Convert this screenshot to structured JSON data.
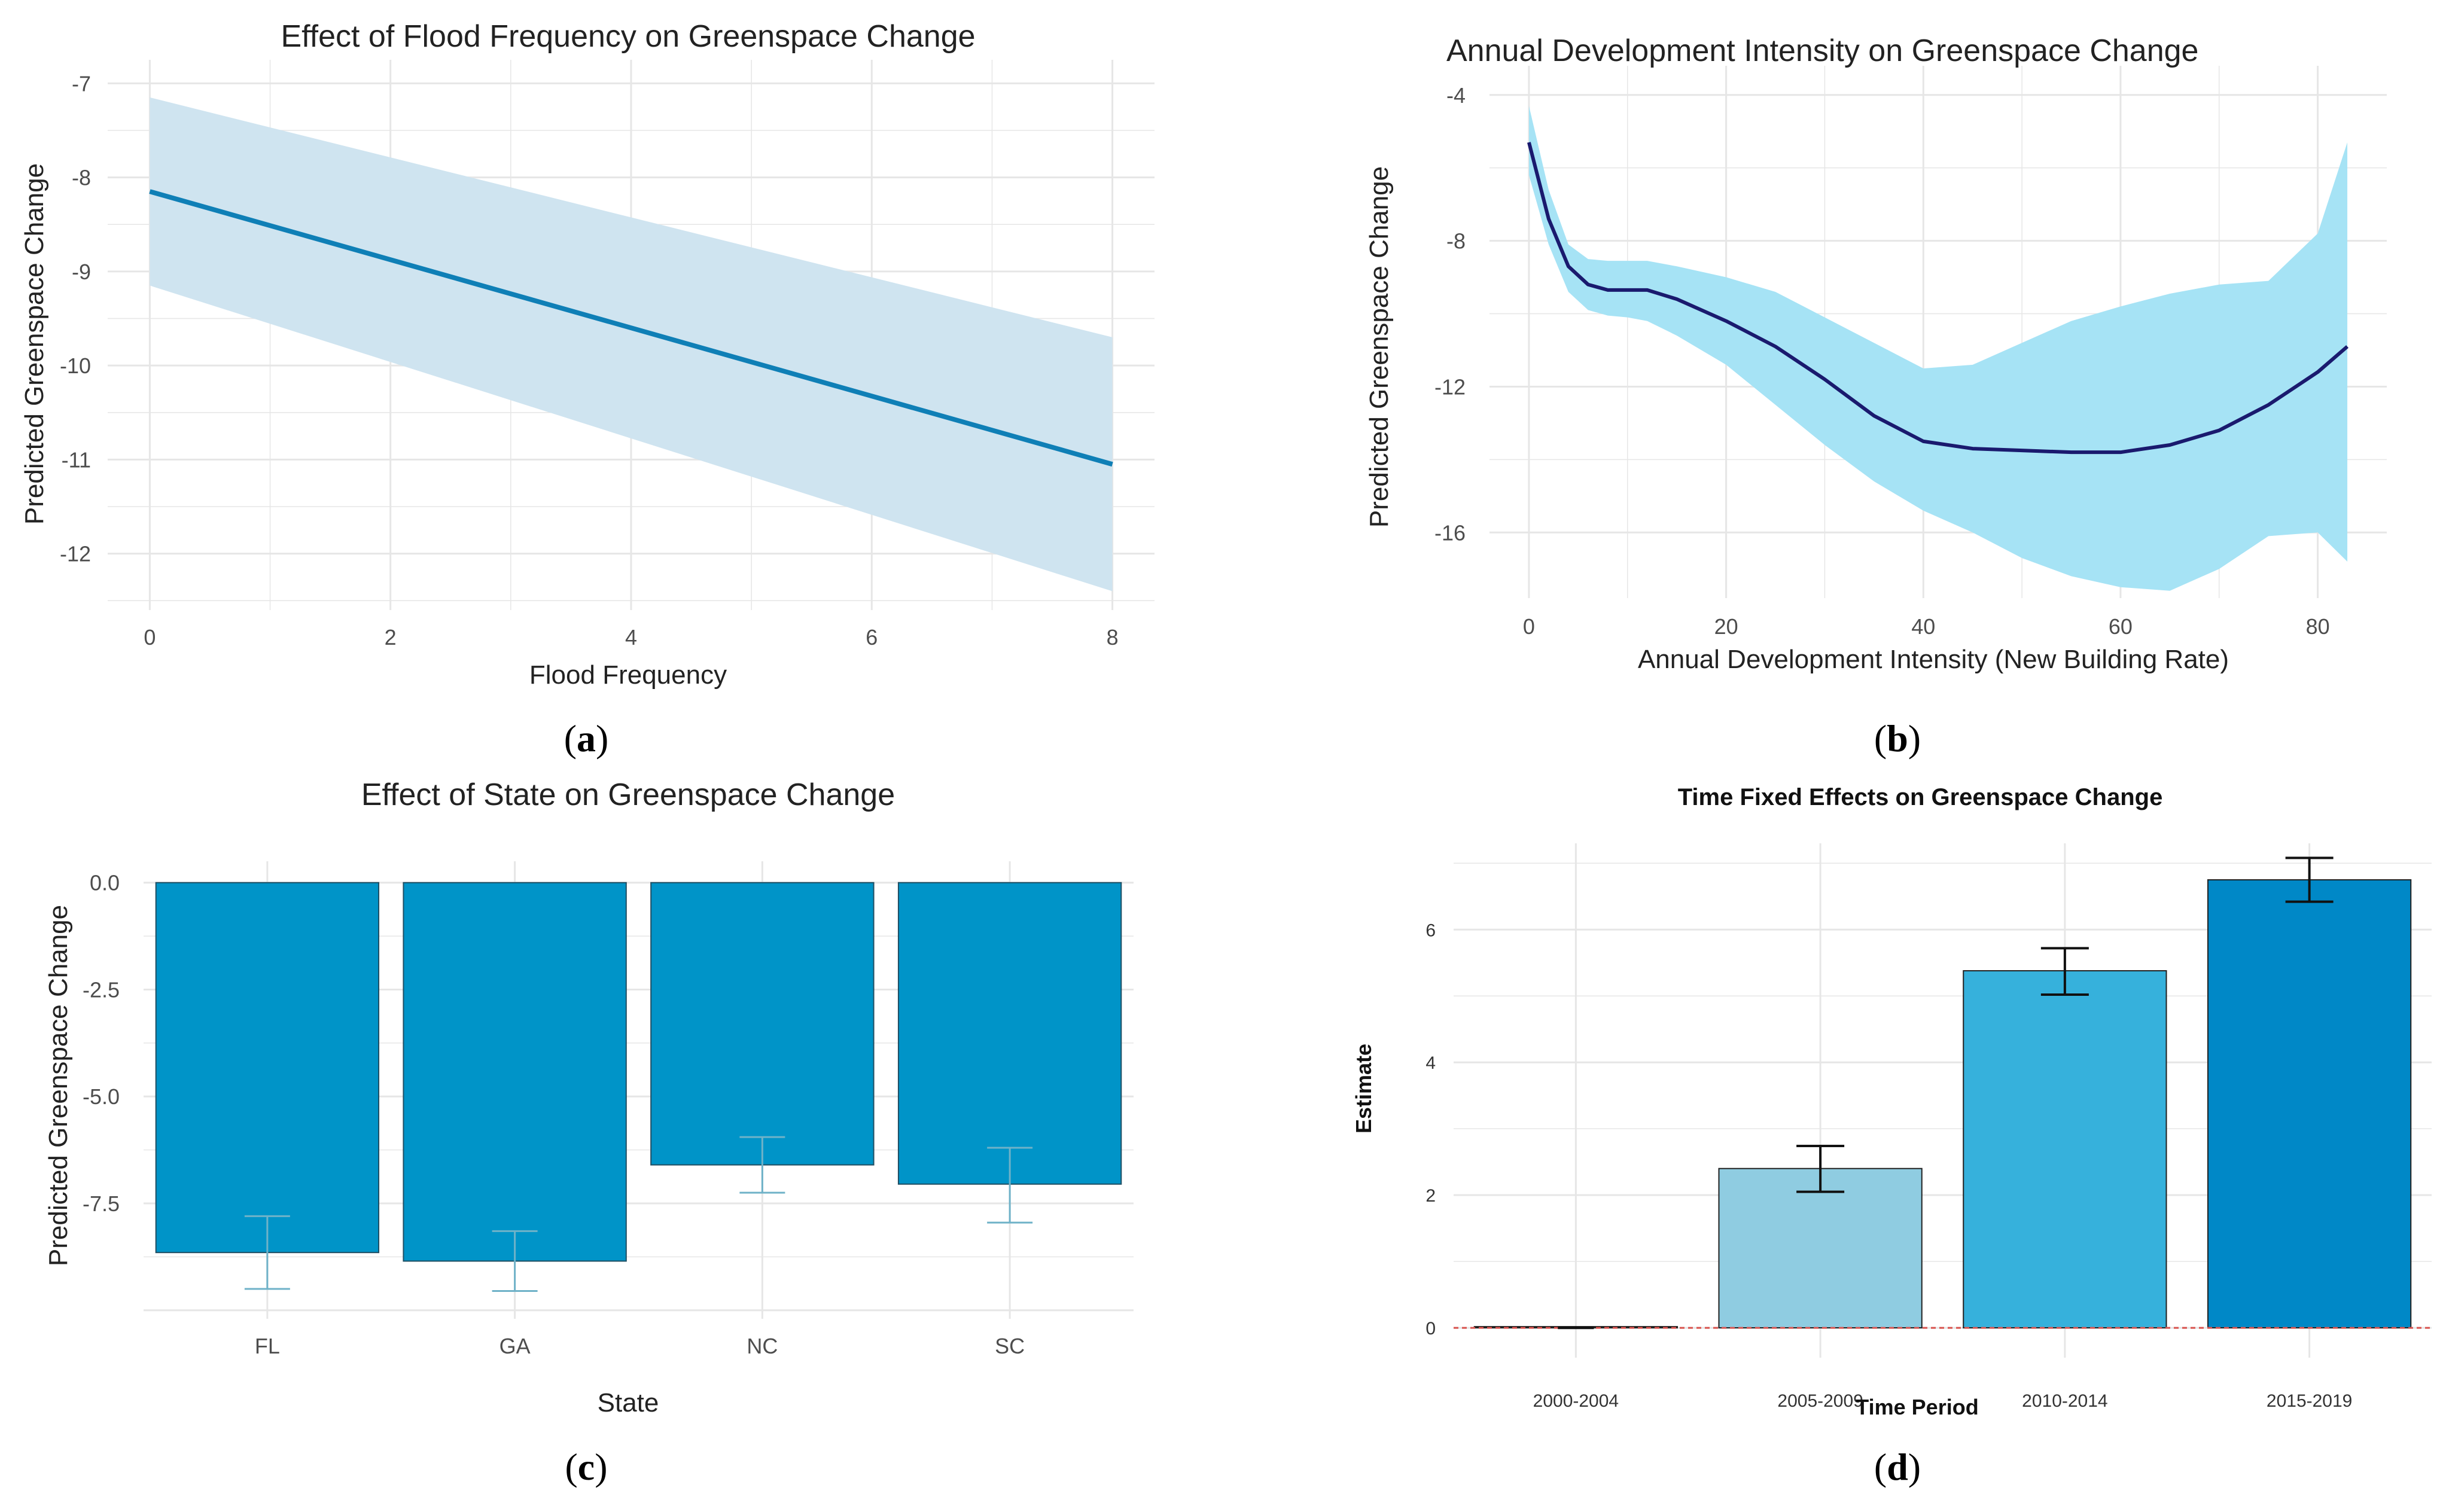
{
  "captions": {
    "a": {
      "open": "(",
      "letter": "a",
      "close": ")"
    },
    "b": {
      "open": "(",
      "letter": "b",
      "close": ")"
    },
    "c": {
      "open": "(",
      "letter": "c",
      "close": ")"
    },
    "d": {
      "open": "(",
      "letter": "d",
      "close": ")"
    }
  },
  "colors": {
    "a_line": "#0F7FB6",
    "a_band": "#CFE4F0",
    "b_line": "#1A1A6E",
    "b_band": "#A6E3F5",
    "c_bar": "#0094C8",
    "c_err": "#6FB2C8",
    "d_bars": [
      "#8FCCE1",
      "#8FCCE1",
      "#36B1DC",
      "#0088C7"
    ],
    "d_ref": "#D9534F",
    "grid": "#E6E6E6"
  },
  "chart_data": [
    {
      "id": "a",
      "type": "line",
      "title": "Effect of Flood Frequency on Greenspace Change",
      "xlabel": "Flood Frequency",
      "ylabel": "Predicted Greenspace Change",
      "xlim": [
        -0.35,
        8.35
      ],
      "ylim": [
        -12.6,
        -6.75
      ],
      "xticks": [
        0,
        2,
        4,
        6,
        8
      ],
      "yticks": [
        -7,
        -8,
        -9,
        -10,
        -11,
        -12
      ],
      "series": [
        {
          "name": "fit",
          "x": [
            0,
            8
          ],
          "y": [
            -8.15,
            -11.05
          ],
          "lower": [
            -9.15,
            -12.4
          ],
          "upper": [
            -7.15,
            -9.7
          ]
        }
      ]
    },
    {
      "id": "b",
      "type": "line",
      "title": "Annual Development Intensity on Greenspace Change",
      "xlabel": "Annual Development Intensity (New Building Rate)",
      "ylabel": "Predicted Greenspace Change",
      "xlim": [
        -4,
        87
      ],
      "ylim": [
        -17.8,
        -3.2
      ],
      "xticks": [
        0,
        20,
        40,
        60,
        80
      ],
      "yticks": [
        -4,
        -8,
        -12,
        -16
      ],
      "series": [
        {
          "name": "smooth",
          "x": [
            0,
            2,
            4,
            6,
            8,
            10,
            12,
            15,
            20,
            25,
            30,
            35,
            40,
            45,
            50,
            55,
            60,
            65,
            70,
            75,
            80,
            83
          ],
          "y": [
            -5.3,
            -7.4,
            -8.7,
            -9.2,
            -9.35,
            -9.35,
            -9.35,
            -9.6,
            -10.2,
            -10.9,
            -11.8,
            -12.8,
            -13.5,
            -13.7,
            -13.75,
            -13.8,
            -13.8,
            -13.6,
            -13.2,
            -12.5,
            -11.6,
            -10.9
          ],
          "lower": [
            -6.2,
            -8.1,
            -9.4,
            -9.9,
            -10.05,
            -10.1,
            -10.2,
            -10.6,
            -11.4,
            -12.5,
            -13.6,
            -14.6,
            -15.4,
            -16.0,
            -16.7,
            -17.2,
            -17.5,
            -17.6,
            -17.0,
            -16.1,
            -16.0,
            -16.8
          ],
          "upper": [
            -4.3,
            -6.6,
            -8.1,
            -8.5,
            -8.55,
            -8.55,
            -8.55,
            -8.7,
            -9.0,
            -9.4,
            -10.1,
            -10.8,
            -11.5,
            -11.4,
            -10.8,
            -10.2,
            -9.8,
            -9.45,
            -9.2,
            -9.1,
            -7.8,
            -5.3
          ]
        }
      ]
    },
    {
      "id": "c",
      "type": "bar",
      "title": "Effect of State on Greenspace Change",
      "xlabel": "State",
      "ylabel": "Predicted Greenspace Change",
      "ylim": [
        -10.2,
        0.5
      ],
      "yticks": [
        "0.0",
        "-2.5",
        "-5.0",
        "-7.5"
      ],
      "categories": [
        "FL",
        "GA",
        "NC",
        "SC"
      ],
      "values": [
        -8.65,
        -8.85,
        -6.6,
        -7.05
      ],
      "err_low": [
        -9.5,
        -9.55,
        -7.25,
        -7.95
      ],
      "err_high": [
        -7.8,
        -8.15,
        -5.95,
        -6.2
      ]
    },
    {
      "id": "d",
      "type": "bar",
      "title": "Time Fixed Effects on Greenspace Change",
      "xlabel": "Time Period",
      "ylabel": "Estimate",
      "ylim": [
        -0.45,
        7.3
      ],
      "yticks": [
        0,
        2,
        4,
        6
      ],
      "categories": [
        "2000-2004",
        "2005-2009",
        "2010-2014",
        "2015-2019"
      ],
      "values": [
        0.0,
        2.4,
        5.38,
        6.75
      ],
      "err_low": [
        0.0,
        2.05,
        5.02,
        6.42
      ],
      "err_high": [
        0.0,
        2.74,
        5.72,
        7.08
      ]
    }
  ]
}
